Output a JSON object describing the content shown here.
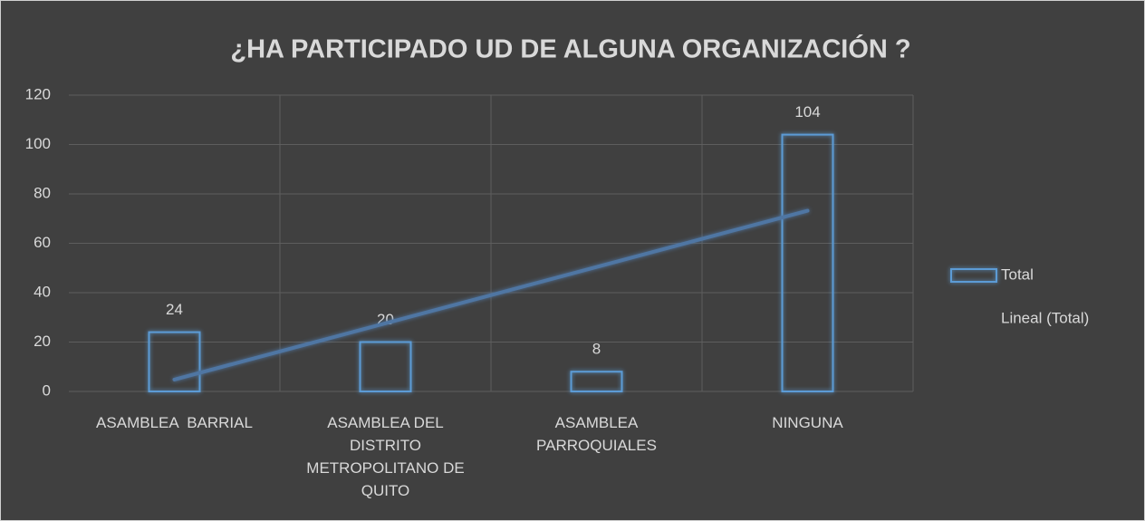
{
  "chart_data": {
    "type": "bar",
    "title": "¿HA PARTICIPADO UD DE ALGUNA ORGANIZACIÓN ?",
    "categories": [
      "ASAMBLEA  BARRIAL",
      "ASAMBLEA DEL DISTRITO METROPOLITANO DE QUITO",
      "ASAMBLEA PARROQUIALES",
      "NINGUNA"
    ],
    "series": [
      {
        "name": "Total",
        "color": "#5b9bd5",
        "values": [
          24,
          20,
          8,
          104
        ]
      },
      {
        "name": "Lineal (Total)",
        "type": "line",
        "color": "#4f76a3",
        "values": [
          4.8,
          27.6,
          50.4,
          73.2
        ]
      }
    ],
    "ylim": [
      0,
      120
    ],
    "yticks": [
      0,
      20,
      40,
      60,
      80,
      100,
      120
    ],
    "grid": true,
    "legend": "right"
  }
}
